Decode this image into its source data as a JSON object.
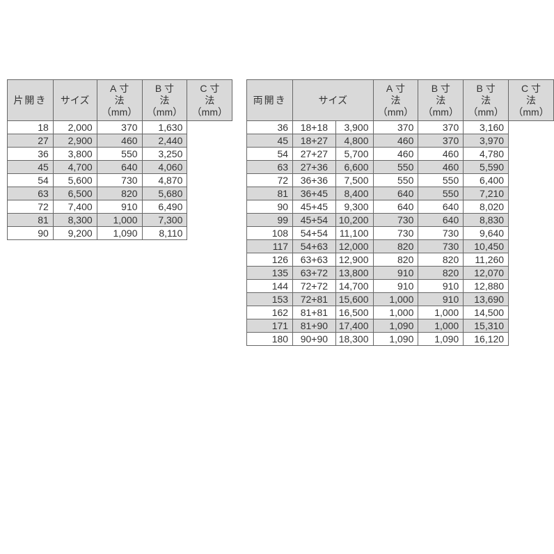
{
  "left": {
    "label": "片開き",
    "headers": {
      "size": "サイズ",
      "a": "A 寸法（mm）",
      "b": "B 寸法（mm）",
      "c": "C 寸法（mm）"
    },
    "rows": [
      {
        "size": "18",
        "a": "2,000",
        "b": "370",
        "c": "1,630"
      },
      {
        "size": "27",
        "a": "2,900",
        "b": "460",
        "c": "2,440"
      },
      {
        "size": "36",
        "a": "3,800",
        "b": "550",
        "c": "3,250"
      },
      {
        "size": "45",
        "a": "4,700",
        "b": "640",
        "c": "4,060"
      },
      {
        "size": "54",
        "a": "5,600",
        "b": "730",
        "c": "4,870"
      },
      {
        "size": "63",
        "a": "6,500",
        "b": "820",
        "c": "5,680"
      },
      {
        "size": "72",
        "a": "7,400",
        "b": "910",
        "c": "6,490"
      },
      {
        "size": "81",
        "a": "8,300",
        "b": "1,000",
        "c": "7,300"
      },
      {
        "size": "90",
        "a": "9,200",
        "b": "1,090",
        "c": "8,110"
      }
    ]
  },
  "right": {
    "label": "両開き",
    "headers": {
      "size": "サイズ",
      "a": "A 寸法（mm）",
      "b1": "B 寸法（mm）",
      "b2": "B 寸法（mm）",
      "c": "C 寸法（mm）"
    },
    "rows": [
      {
        "size": "36",
        "combo": "18+18",
        "a": "3,900",
        "b1": "370",
        "b2": "370",
        "c": "3,160"
      },
      {
        "size": "45",
        "combo": "18+27",
        "a": "4,800",
        "b1": "460",
        "b2": "370",
        "c": "3,970"
      },
      {
        "size": "54",
        "combo": "27+27",
        "a": "5,700",
        "b1": "460",
        "b2": "460",
        "c": "4,780"
      },
      {
        "size": "63",
        "combo": "27+36",
        "a": "6,600",
        "b1": "550",
        "b2": "460",
        "c": "5,590"
      },
      {
        "size": "72",
        "combo": "36+36",
        "a": "7,500",
        "b1": "550",
        "b2": "550",
        "c": "6,400"
      },
      {
        "size": "81",
        "combo": "36+45",
        "a": "8,400",
        "b1": "640",
        "b2": "550",
        "c": "7,210"
      },
      {
        "size": "90",
        "combo": "45+45",
        "a": "9,300",
        "b1": "640",
        "b2": "640",
        "c": "8,020"
      },
      {
        "size": "99",
        "combo": "45+54",
        "a": "10,200",
        "b1": "730",
        "b2": "640",
        "c": "8,830"
      },
      {
        "size": "108",
        "combo": "54+54",
        "a": "11,100",
        "b1": "730",
        "b2": "730",
        "c": "9,640"
      },
      {
        "size": "117",
        "combo": "54+63",
        "a": "12,000",
        "b1": "820",
        "b2": "730",
        "c": "10,450"
      },
      {
        "size": "126",
        "combo": "63+63",
        "a": "12,900",
        "b1": "820",
        "b2": "820",
        "c": "11,260"
      },
      {
        "size": "135",
        "combo": "63+72",
        "a": "13,800",
        "b1": "910",
        "b2": "820",
        "c": "12,070"
      },
      {
        "size": "144",
        "combo": "72+72",
        "a": "14,700",
        "b1": "910",
        "b2": "910",
        "c": "12,880"
      },
      {
        "size": "153",
        "combo": "72+81",
        "a": "15,600",
        "b1": "1,000",
        "b2": "910",
        "c": "13,690"
      },
      {
        "size": "162",
        "combo": "81+81",
        "a": "16,500",
        "b1": "1,000",
        "b2": "1,000",
        "c": "14,500"
      },
      {
        "size": "171",
        "combo": "81+90",
        "a": "17,400",
        "b1": "1,090",
        "b2": "1,000",
        "c": "15,310"
      },
      {
        "size": "180",
        "combo": "90+90",
        "a": "18,300",
        "b1": "1,090",
        "b2": "1,090",
        "c": "16,120"
      }
    ]
  },
  "style": {
    "border_color": "#666666",
    "header_bg": "#d9d9d9",
    "stripe_bg": "#d9d9d9",
    "text_color": "#333333",
    "font_size": 14
  }
}
